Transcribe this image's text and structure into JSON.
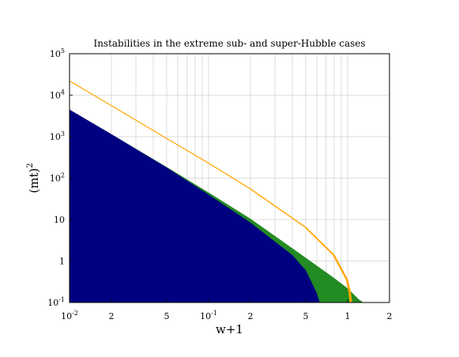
{
  "chart_data": {
    "type": "area",
    "title": "Instabilities in the extreme sub- and super-Hubble cases",
    "xlabel": "w+1",
    "ylabel": "(mt)",
    "ylabel_sup": "2",
    "x_scale": "log",
    "y_scale": "log",
    "xlim": [
      0.01,
      2
    ],
    "ylim": [
      0.1,
      100000
    ],
    "grid": true,
    "x_ticks": [
      {
        "value": 0.01,
        "base": "10",
        "exp": "-2"
      },
      {
        "value": 0.02,
        "label": "2"
      },
      {
        "value": 0.05,
        "label": "5"
      },
      {
        "value": 0.1,
        "base": "10",
        "exp": "-1"
      },
      {
        "value": 0.2,
        "label": "2"
      },
      {
        "value": 0.5,
        "label": "5"
      },
      {
        "value": 1,
        "label": "1"
      },
      {
        "value": 2,
        "label": "2"
      }
    ],
    "y_ticks": [
      {
        "value": 0.1,
        "base": "10",
        "exp": "-1"
      },
      {
        "value": 1,
        "label": "1"
      },
      {
        "value": 10,
        "label": "10"
      },
      {
        "value": 100,
        "base": "10",
        "exp": "2"
      },
      {
        "value": 1000,
        "base": "10",
        "exp": "3"
      },
      {
        "value": 10000,
        "base": "10",
        "exp": "4"
      },
      {
        "value": 100000,
        "base": "10",
        "exp": "5"
      }
    ],
    "series": [
      {
        "kind": "band",
        "color": "#228b22",
        "x": [
          0.01,
          0.02,
          0.05,
          0.1,
          0.2,
          0.5,
          0.8,
          1.0,
          1.2,
          1.3
        ],
        "y": [
          4500,
          1150,
          185,
          45,
          10.5,
          1.2,
          0.39,
          0.22,
          0.12,
          0.1
        ]
      },
      {
        "kind": "band",
        "color": "#000080",
        "x": [
          0.01,
          0.02,
          0.05,
          0.1,
          0.2,
          0.4,
          0.5,
          0.6,
          0.63
        ],
        "y": [
          4500,
          1150,
          180,
          40,
          8.5,
          1.4,
          0.6,
          0.17,
          0.1
        ]
      },
      {
        "kind": "curve",
        "color": "#ffa500",
        "x": [
          0.01,
          0.02,
          0.05,
          0.1,
          0.2,
          0.5,
          0.8,
          1.0,
          1.05,
          1.07
        ],
        "y": [
          22000,
          5600,
          900,
          230,
          55,
          6.5,
          1.4,
          0.35,
          0.17,
          0.1
        ]
      }
    ]
  }
}
